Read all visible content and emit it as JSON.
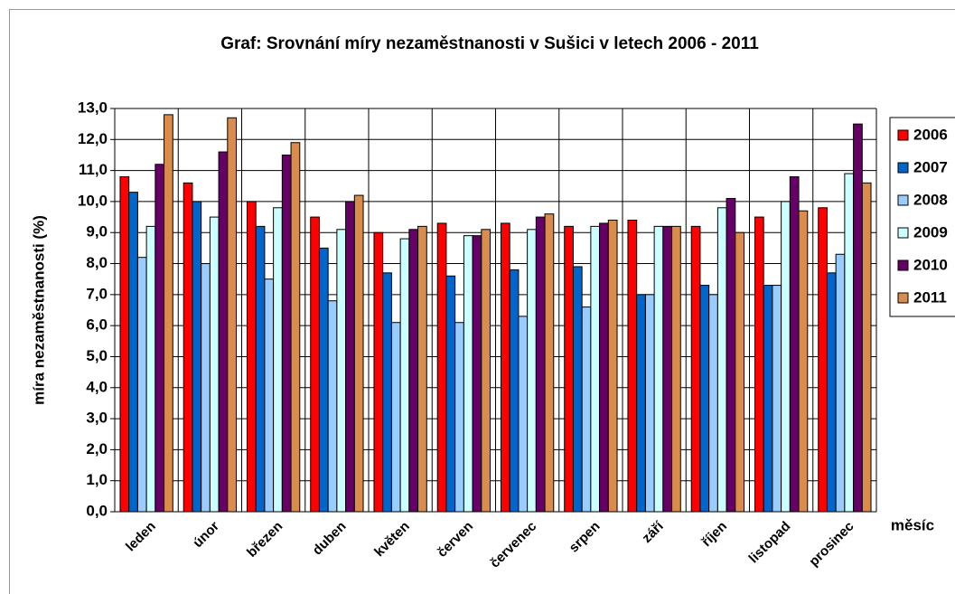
{
  "chart_data": {
    "type": "bar",
    "title": "Graf: Srovnání míry nezaměstnanosti v Sušici v letech 2006 - 2011",
    "y_label": "míra nezaměstnanosti (%)",
    "x_label": "měsíc",
    "categories": [
      "leden",
      "únor",
      "březen",
      "duben",
      "květen",
      "červen",
      "červenec",
      "srpen",
      "září",
      "říjen",
      "listopad",
      "prosinec"
    ],
    "series": [
      {
        "name": "2006",
        "color": "#ff0000",
        "values": [
          10.8,
          10.6,
          10.0,
          9.5,
          9.0,
          9.3,
          9.3,
          9.2,
          9.4,
          9.2,
          9.5,
          9.8
        ]
      },
      {
        "name": "2007",
        "color": "#0066cc",
        "values": [
          10.3,
          10.0,
          9.2,
          8.5,
          7.7,
          7.6,
          7.8,
          7.9,
          7.0,
          7.3,
          7.3,
          7.7
        ]
      },
      {
        "name": "2008",
        "color": "#99ccff",
        "values": [
          8.2,
          8.0,
          7.5,
          6.8,
          6.1,
          6.1,
          6.3,
          6.6,
          7.0,
          7.0,
          7.3,
          8.3
        ]
      },
      {
        "name": "2009",
        "color": "#ccffff",
        "values": [
          9.2,
          9.5,
          9.8,
          9.1,
          8.8,
          8.9,
          9.1,
          9.2,
          9.2,
          9.8,
          10.0,
          10.9
        ]
      },
      {
        "name": "2010",
        "color": "#660066",
        "values": [
          11.2,
          11.6,
          11.5,
          10.0,
          9.1,
          8.9,
          9.5,
          9.3,
          9.2,
          10.1,
          10.8,
          12.5
        ]
      },
      {
        "name": "2011",
        "color": "#d98c4c",
        "values": [
          12.8,
          12.7,
          11.9,
          10.2,
          9.2,
          9.1,
          9.6,
          9.4,
          9.2,
          9.0,
          9.7,
          10.6
        ]
      }
    ],
    "ylim": [
      0,
      13
    ],
    "yticks": [
      {
        "value": 0,
        "label": "0,0"
      },
      {
        "value": 1,
        "label": "1,0"
      },
      {
        "value": 2,
        "label": "2,0"
      },
      {
        "value": 3,
        "label": "3,0"
      },
      {
        "value": 4,
        "label": "4,0"
      },
      {
        "value": 5,
        "label": "5,0"
      },
      {
        "value": 6,
        "label": "6,0"
      },
      {
        "value": 7,
        "label": "7,0"
      },
      {
        "value": 8,
        "label": "8,0"
      },
      {
        "value": 9,
        "label": "9,0"
      },
      {
        "value": 10,
        "label": "10,0"
      },
      {
        "value": 11,
        "label": "11,0"
      },
      {
        "value": 12,
        "label": "12,0"
      },
      {
        "value": 13,
        "label": "13,0"
      }
    ],
    "grid": true,
    "legend": "right"
  }
}
